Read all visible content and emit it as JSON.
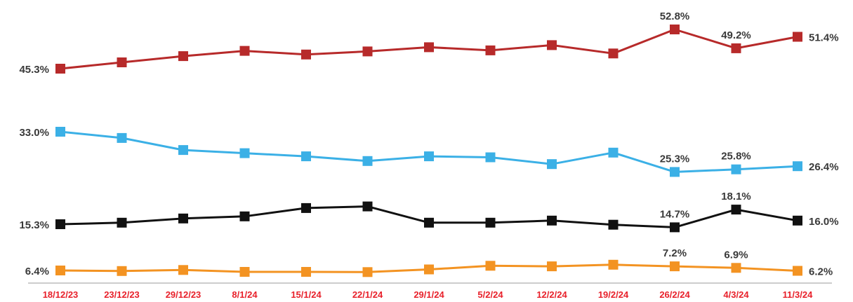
{
  "chart_data": {
    "type": "line",
    "title": "",
    "xlabel": "",
    "ylabel": "",
    "ylim": [
      0,
      60
    ],
    "grid": false,
    "legend": "none",
    "categories": [
      "18/12/23",
      "23/12/23",
      "29/12/23",
      "8/1/24",
      "15/1/24",
      "22/1/24",
      "29/1/24",
      "5/2/24",
      "12/2/24",
      "19/2/24",
      "26/2/24",
      "4/3/24",
      "11/3/24"
    ],
    "series": [
      {
        "color": "#b72a2a",
        "values": [
          45.3,
          46.5,
          47.7,
          48.7,
          48.0,
          48.6,
          49.4,
          48.8,
          49.8,
          48.2,
          52.8,
          49.2,
          51.4
        ],
        "labels": [
          {
            "index": 0,
            "text": "45.3%",
            "pos": "left"
          },
          {
            "index": 10,
            "text": "52.8%",
            "pos": "above"
          },
          {
            "index": 11,
            "text": "49.2%",
            "pos": "above"
          },
          {
            "index": 12,
            "text": "51.4%",
            "pos": "right"
          }
        ]
      },
      {
        "color": "#3bb0e6",
        "values": [
          33.0,
          31.8,
          29.5,
          28.9,
          28.3,
          27.4,
          28.3,
          28.1,
          26.8,
          29.0,
          25.3,
          25.8,
          26.4
        ],
        "labels": [
          {
            "index": 0,
            "text": "33.0%",
            "pos": "left"
          },
          {
            "index": 10,
            "text": "25.3%",
            "pos": "above"
          },
          {
            "index": 11,
            "text": "25.8%",
            "pos": "above"
          },
          {
            "index": 12,
            "text": "26.4%",
            "pos": "right"
          }
        ]
      },
      {
        "color": "#111111",
        "values": [
          15.3,
          15.6,
          16.4,
          16.8,
          18.4,
          18.7,
          15.6,
          15.6,
          16.0,
          15.2,
          14.7,
          18.1,
          16.0
        ],
        "labels": [
          {
            "index": 0,
            "text": "15.3%",
            "pos": "left"
          },
          {
            "index": 10,
            "text": "14.7%",
            "pos": "above"
          },
          {
            "index": 11,
            "text": "18.1%",
            "pos": "above"
          },
          {
            "index": 12,
            "text": "16.0%",
            "pos": "right"
          }
        ]
      },
      {
        "color": "#f39322",
        "values": [
          6.4,
          6.1,
          6.5,
          5.6,
          5.6,
          5.5,
          6.6,
          7.3,
          7.2,
          7.5,
          7.2,
          6.9,
          6.2
        ],
        "labels": [
          {
            "index": 0,
            "text": "6.4%",
            "pos": "left"
          },
          {
            "index": 10,
            "text": "7.2%",
            "pos": "above"
          },
          {
            "index": 11,
            "text": "6.9%",
            "pos": "above"
          },
          {
            "index": 12,
            "text": "6.2%",
            "pos": "right"
          }
        ]
      }
    ],
    "axis_color": "#999999",
    "tick_color": "#e8202a"
  }
}
